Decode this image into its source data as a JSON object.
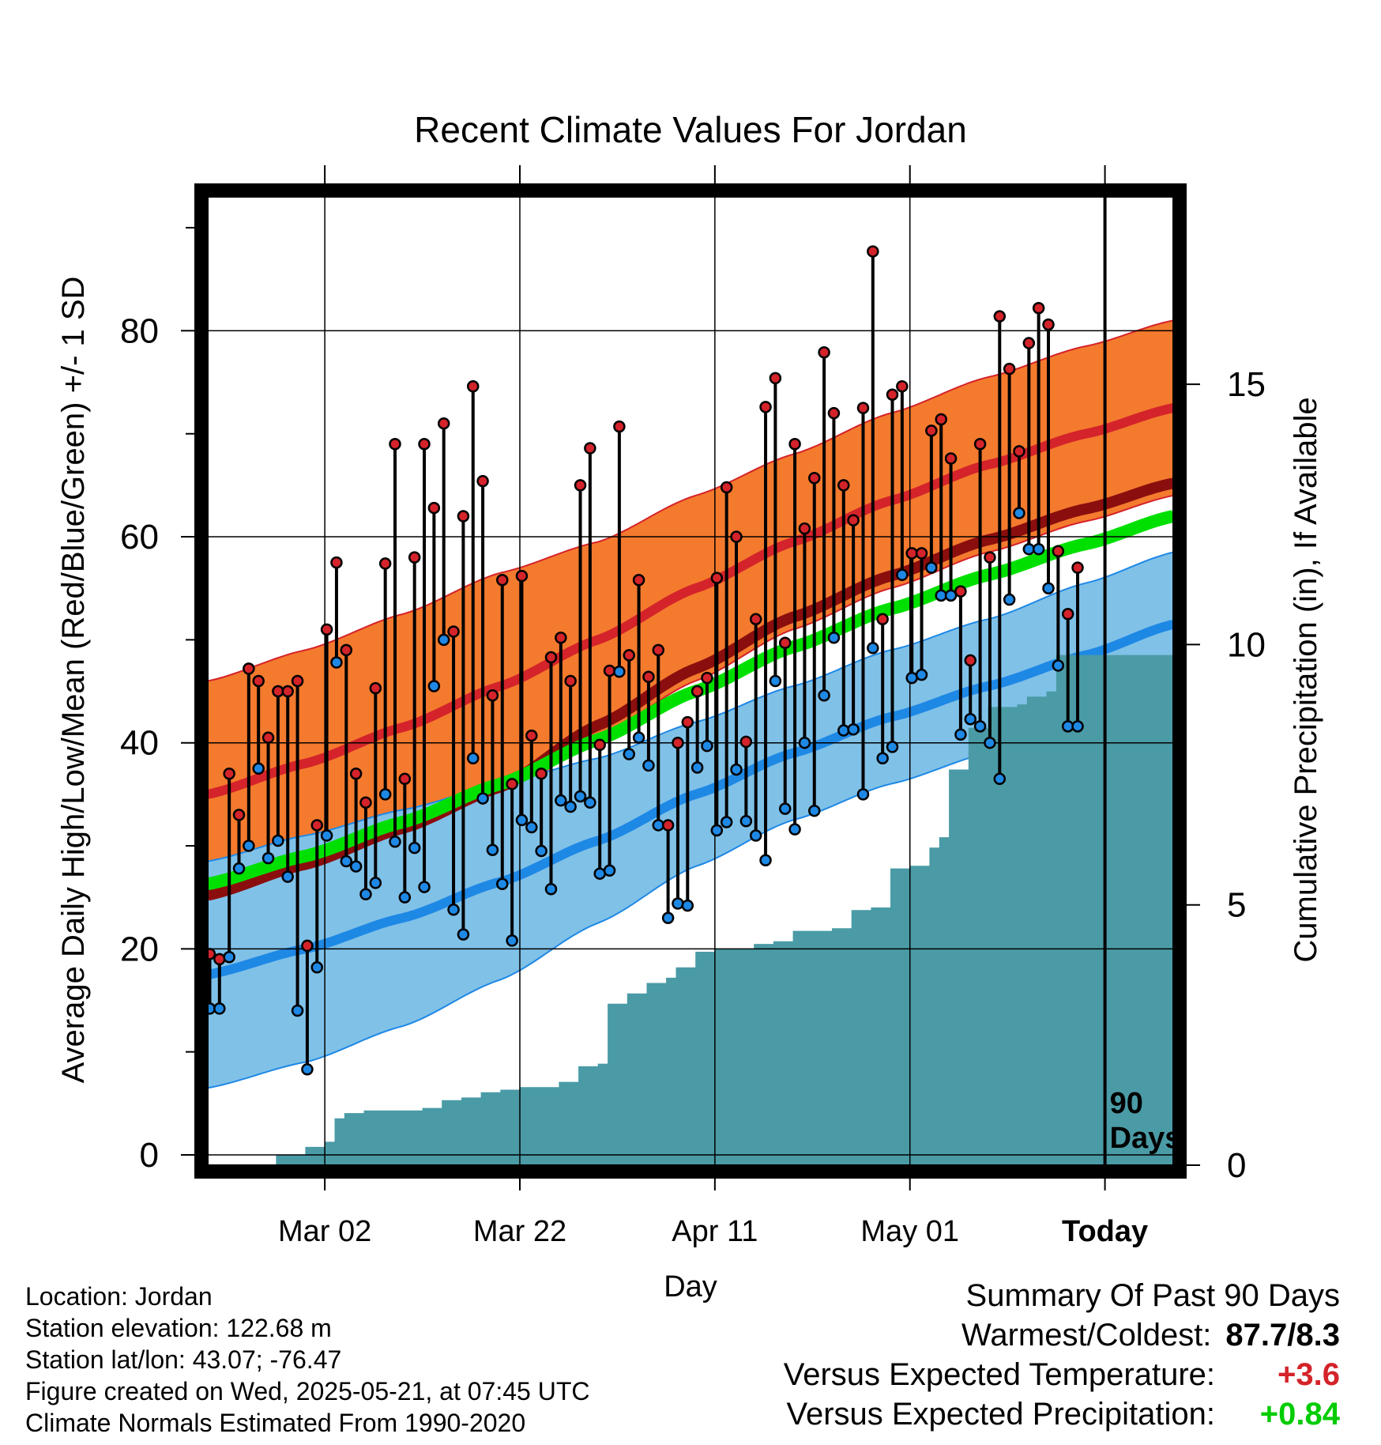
{
  "chart_data": {
    "type": "line",
    "title": "Recent Climate Values For Jordan",
    "xlabel": "Day",
    "ylabel": "Average Daily High/Low/Mean (Red/Blue/Green) +/- 1 SD",
    "y2label": "Cumulative Precipitation (in), If Available",
    "ylim": [
      -1,
      93
    ],
    "y_ticks": [
      0,
      20,
      40,
      60,
      80
    ],
    "y2lim": [
      0,
      18.6
    ],
    "y2_ticks": [
      0,
      5,
      10,
      15
    ],
    "x_tick_labels": [
      "Mar 02",
      "Mar 22",
      "Apr 11",
      "May 01",
      "Today"
    ],
    "today_marker_label": [
      "90",
      "Days"
    ],
    "grid": true,
    "colors": {
      "high_band": "#f47a2e",
      "high_mean": "#d4232a",
      "low_band": "#80c1e8",
      "low_mean": "#1e88e5",
      "mean_line": "#00e000",
      "overlap_line": "#8b0e0e",
      "precip": "#4a9ba6",
      "high_marker": "#d4232a",
      "low_marker": "#1e88e5"
    },
    "normals": {
      "x": [
        0,
        10,
        20,
        30,
        40,
        50,
        60,
        70,
        80,
        90,
        99
      ],
      "high_mean": [
        35,
        38,
        41.5,
        45.5,
        50,
        55,
        59.5,
        63.5,
        67,
        70,
        72.5
      ],
      "high_sd": [
        11,
        11,
        11,
        11,
        9.5,
        9,
        8.5,
        8.5,
        8.5,
        8.5,
        8.5
      ],
      "low_mean": [
        17.5,
        20,
        23,
        26.5,
        30.5,
        35,
        39,
        42.5,
        45.5,
        48.5,
        51.5
      ],
      "low_sd": [
        11,
        11,
        10.5,
        9.5,
        8,
        7,
        6.5,
        6.5,
        6.5,
        7,
        7
      ],
      "mean_line": [
        26.3,
        29,
        32.3,
        36,
        40.3,
        45,
        49.3,
        53,
        56.3,
        59.3,
        62
      ]
    },
    "daily": {
      "x": [
        0,
        1,
        2,
        3,
        4,
        5,
        6,
        7,
        8,
        9,
        10,
        11,
        12,
        13,
        14,
        15,
        16,
        17,
        18,
        19,
        20,
        21,
        22,
        23,
        24,
        25,
        26,
        27,
        28,
        29,
        30,
        31,
        32,
        33,
        34,
        35,
        36,
        37,
        38,
        39,
        40,
        41,
        42,
        43,
        44,
        45,
        46,
        47,
        48,
        49,
        50,
        51,
        52,
        53,
        54,
        55,
        56,
        57,
        58,
        59,
        60,
        61,
        62,
        63,
        64,
        65,
        66,
        67,
        68,
        69,
        70,
        71,
        72,
        73,
        74,
        75,
        76,
        77,
        78,
        79,
        80,
        81,
        82,
        83,
        84,
        85,
        86,
        87,
        88,
        89
      ],
      "high": [
        19.5,
        19,
        37,
        33,
        47.2,
        46,
        40.5,
        45,
        45,
        46,
        20.3,
        32,
        51,
        57.5,
        49,
        37,
        34.2,
        45.3,
        57.4,
        69,
        36.5,
        58,
        69,
        62.8,
        71,
        50.8,
        62,
        74.6,
        65.4,
        44.6,
        55.8,
        36,
        56.2,
        40.7,
        37,
        48.3,
        50.2,
        46,
        65,
        68.6,
        39.8,
        47,
        70.7,
        48.5,
        55.8,
        46.4,
        49,
        32,
        40,
        42,
        45,
        46.3,
        56,
        64.8,
        60,
        40.1,
        52,
        72.6,
        75.4,
        49.7,
        69,
        60.8,
        65.7,
        77.9,
        72,
        65,
        61.6,
        72.5,
        87.7,
        52,
        73.8,
        74.6,
        58.4,
        58.4,
        70.3,
        71.4,
        67.6,
        54.7,
        48,
        69,
        58,
        81.4,
        76.3,
        68.3,
        78.8,
        82.2,
        80.6,
        58.6,
        52.5,
        57
      ],
      "low": [
        14.2,
        14.2,
        19.2,
        27.8,
        30,
        37.5,
        28.8,
        30.5,
        27,
        14,
        8.3,
        18.2,
        31,
        47.8,
        28.5,
        28,
        25.3,
        26.4,
        35,
        30.4,
        25,
        29.8,
        26,
        45.5,
        50,
        23.8,
        21.4,
        38.5,
        34.6,
        29.6,
        26.3,
        20.8,
        32.5,
        31.8,
        29.5,
        25.8,
        34.4,
        33.8,
        34.8,
        34.2,
        27.3,
        27.6,
        46.9,
        38.9,
        40.5,
        37.8,
        32,
        23,
        24.4,
        24.2,
        37.6,
        39.7,
        31.5,
        32.3,
        37.4,
        32.4,
        31,
        28.6,
        46,
        33.6,
        31.6,
        40,
        33.4,
        44.6,
        50.2,
        41.2,
        41.3,
        35,
        49.2,
        38.5,
        39.6,
        56.3,
        46.3,
        46.6,
        57,
        54.3,
        54.3,
        40.8,
        42.3,
        41.6,
        40,
        36.5,
        53.9,
        62.3,
        58.8,
        58.8,
        55,
        47.5,
        41.6,
        41.6
      ]
    },
    "precipitation": {
      "x": [
        0,
        6,
        7,
        10,
        12,
        13,
        14,
        16,
        20,
        22,
        24,
        26,
        28,
        30,
        32,
        36,
        38,
        40,
        41,
        43,
        45,
        47,
        48,
        50,
        52,
        54,
        56,
        58,
        60,
        62,
        64,
        66,
        68,
        70,
        72,
        74,
        75,
        76,
        78,
        80,
        81,
        82,
        83,
        84,
        85,
        86,
        87,
        88,
        89,
        90,
        99
      ],
      "cumulative": [
        0,
        0,
        0.2,
        0.35,
        0.45,
        0.9,
        1.0,
        1.05,
        1.05,
        1.1,
        1.25,
        1.3,
        1.4,
        1.45,
        1.5,
        1.6,
        1.9,
        1.95,
        3.1,
        3.3,
        3.5,
        3.6,
        3.8,
        4.1,
        4.15,
        4.15,
        4.25,
        4.3,
        4.5,
        4.5,
        4.55,
        4.9,
        4.95,
        5.7,
        5.75,
        6.1,
        6.3,
        7.6,
        8.4,
        8.8,
        8.8,
        8.8,
        8.85,
        9.0,
        9.0,
        9.1,
        9.8,
        9.8,
        9.8,
        9.8,
        9.8
      ]
    }
  },
  "footer": {
    "location": "Location: Jordan",
    "elevation": "Station elevation: 122.68 m",
    "latlon": "Station lat/lon: 43.07; -76.47",
    "created": "Figure created on Wed, 2025-05-21, at 07:45 UTC",
    "normals": "Climate Normals Estimated From 1990-2020"
  },
  "summary": {
    "title": "Summary Of Past 90 Days",
    "warmest_coldest_label": "Warmest/Coldest:",
    "warmest_coldest_value": "87.7/8.3",
    "temp_label": "Versus Expected Temperature:",
    "temp_value": "+3.6",
    "temp_color": "#d4232a",
    "precip_label": "Versus Expected Precipitation:",
    "precip_value": "+0.84",
    "precip_color": "#00cc00"
  }
}
